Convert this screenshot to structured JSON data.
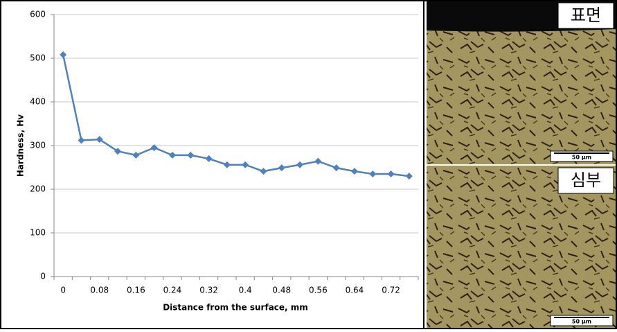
{
  "chart_data": {
    "type": "line",
    "categories": [
      "0",
      null,
      "0.08",
      null,
      "0.16",
      null,
      "0.24",
      null,
      "0.32",
      null,
      "0.4",
      null,
      "0.48",
      null,
      "0.56",
      null,
      "0.64",
      null,
      "0.72",
      null
    ],
    "values": [
      508,
      312,
      314,
      287,
      278,
      295,
      278,
      278,
      270,
      256,
      256,
      241,
      249,
      256,
      264,
      249,
      241,
      235,
      235,
      230
    ],
    "color": "#4f81bd",
    "ylabel": "Hardness, Hv",
    "xlabel": "Distance from the surface, mm",
    "ylim": [
      0,
      600
    ],
    "yticks": [
      0,
      100,
      200,
      300,
      400,
      500,
      600
    ],
    "grid": true
  },
  "images": [
    {
      "label": "표면",
      "scale": "50 μm"
    },
    {
      "label": "심부",
      "scale": "50 μm"
    }
  ]
}
